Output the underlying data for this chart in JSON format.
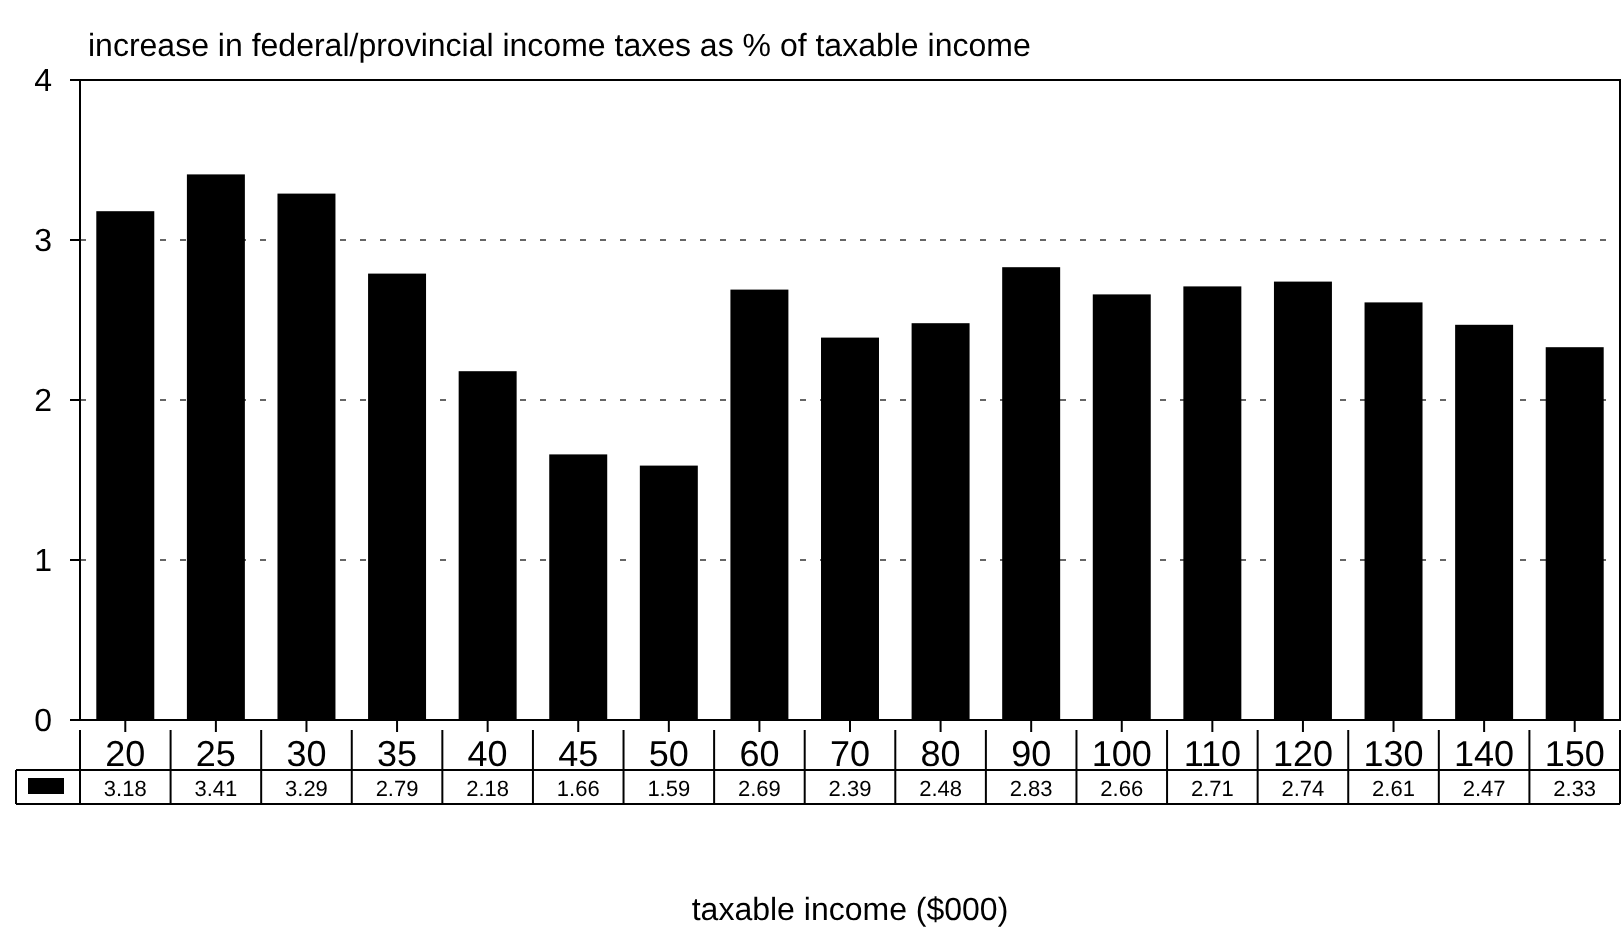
{
  "chart_data": {
    "type": "bar",
    "title": "increase in federal/provincial income taxes as % of taxable income",
    "xlabel": "taxable income ($000)",
    "categories": [
      "20",
      "25",
      "30",
      "35",
      "40",
      "45",
      "50",
      "60",
      "70",
      "80",
      "90",
      "100",
      "110",
      "120",
      "130",
      "140",
      "150"
    ],
    "values": [
      3.18,
      3.41,
      3.29,
      2.79,
      2.18,
      1.66,
      1.59,
      2.69,
      2.39,
      2.48,
      2.83,
      2.66,
      2.71,
      2.74,
      2.61,
      2.47,
      2.33
    ],
    "color": "#000000",
    "ylim": [
      0,
      4
    ],
    "yticks": [
      0,
      1,
      2,
      3,
      4
    ],
    "grid": "y",
    "data_labels": true
  }
}
